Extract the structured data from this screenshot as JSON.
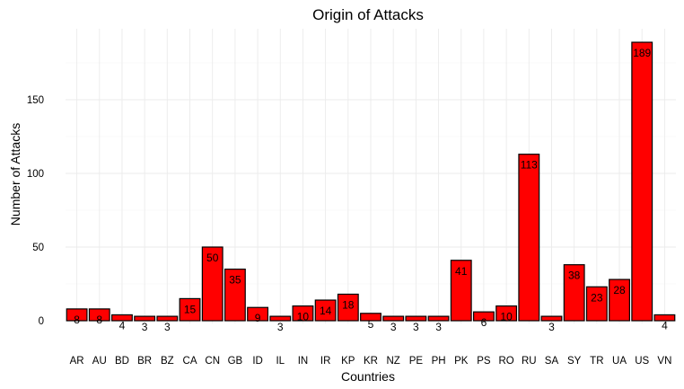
{
  "chart_data": {
    "type": "bar",
    "title": "Origin of Attacks",
    "xlabel": "Countries",
    "ylabel": "Number of Attacks",
    "categories": [
      "AR",
      "AU",
      "BD",
      "BR",
      "BZ",
      "CA",
      "CN",
      "GB",
      "ID",
      "IL",
      "IN",
      "IR",
      "KP",
      "KR",
      "NZ",
      "PE",
      "PH",
      "PK",
      "PS",
      "RO",
      "RU",
      "SA",
      "SY",
      "TR",
      "UA",
      "US",
      "VN"
    ],
    "values": [
      8,
      8,
      4,
      3,
      3,
      15,
      50,
      35,
      9,
      3,
      10,
      14,
      18,
      5,
      3,
      3,
      3,
      41,
      6,
      10,
      113,
      3,
      38,
      23,
      28,
      189,
      4
    ],
    "ylim": [
      0,
      195
    ],
    "yticks": [
      0,
      50,
      100,
      150
    ],
    "grid": true,
    "legend": "none",
    "bar_color": "#ff0000",
    "bar_outline": "#000000"
  }
}
